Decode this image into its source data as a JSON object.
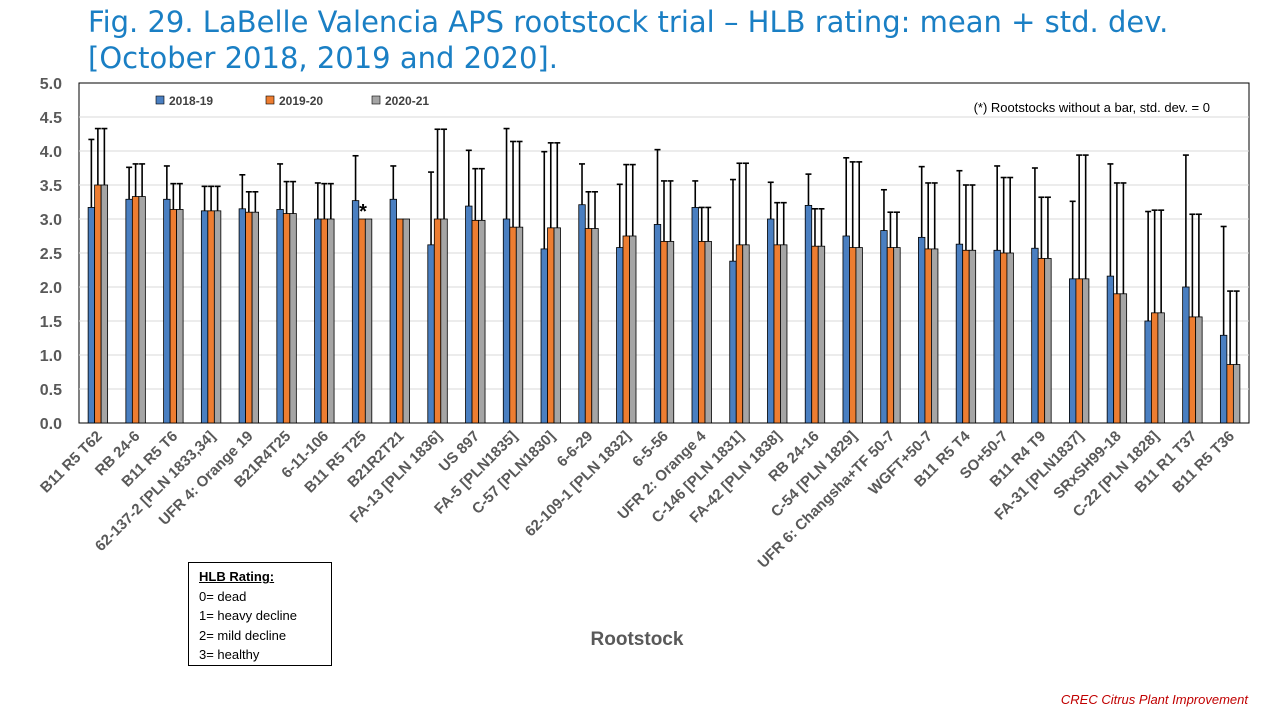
{
  "title": "Fig. 29. LaBelle Valencia APS rootstock trial – HLB rating: mean + std. dev. [October 2018, 2019 and 2020].",
  "chart_data": {
    "type": "bar",
    "title": "Fig. 29. LaBelle Valencia APS rootstock trial – HLB rating: mean + std. dev. [October 2018, 2019 and 2020].",
    "xlabel": "Rootstock",
    "ylabel": "",
    "ylim": [
      0,
      5
    ],
    "yticks": [
      "0.0",
      "0.5",
      "1.0",
      "1.5",
      "2.0",
      "2.5",
      "3.0",
      "3.5",
      "4.0",
      "4.5",
      "5.0"
    ],
    "grid": true,
    "legend_position": "top-left",
    "annotation": "(*) Rootstocks without  a bar, std. dev. = 0",
    "star_label": "*",
    "star_category_index": 7,
    "categories": [
      "B11 R5 T62",
      "RB 24-6",
      "B11 R5 T6",
      "62-137-2 [PLN 1833,34]",
      "UFR 4: Orange 19",
      "B21R4T25",
      "6-11-106",
      "B11 R5 T25",
      "B21R2T21",
      "FA-13 [PLN 1836]",
      "US 897",
      "FA-5 [PLN1835]",
      "C-57 [PLN1830]",
      "6-6-29",
      "62-109-1 [PLN 1832]",
      "6-5-56",
      "UFR 2: Orange 4",
      "C-146 [PLN 1831]",
      "FA-42 [PLN 1838]",
      "RB 24-16",
      "C-54 [PLN 1829]",
      "UFR 6: Changsha+TF 50-7",
      "WGFT+50-7",
      "B11 R5 T4",
      "SO+50-7",
      "B11 R4 T9",
      "FA-31 [PLN1837]",
      "SRxSH99-18",
      "C-22 [PLN 1828]",
      "B11 R1 T37",
      "B11 R5 T36"
    ],
    "series": [
      {
        "name": "2018-19",
        "color": "#4a7fc1",
        "values": [
          3.17,
          3.29,
          3.29,
          3.12,
          3.15,
          3.14,
          3.0,
          3.27,
          3.29,
          2.62,
          3.19,
          3.0,
          2.56,
          3.21,
          2.58,
          2.92,
          3.17,
          2.38,
          3.0,
          3.2,
          2.75,
          2.83,
          2.73,
          2.63,
          2.54,
          2.57,
          2.12,
          2.16,
          1.5,
          2.0,
          1.29
        ],
        "std": [
          1.0,
          0.47,
          0.49,
          0.36,
          0.5,
          0.67,
          0.53,
          0.66,
          0.49,
          1.07,
          0.82,
          1.33,
          1.43,
          0.6,
          0.93,
          1.1,
          0.39,
          1.2,
          0.54,
          0.46,
          1.15,
          0.6,
          1.04,
          1.08,
          1.24,
          1.18,
          1.14,
          1.65,
          1.61,
          1.94,
          1.6
        ]
      },
      {
        "name": "2019-20",
        "color": "#ed7d31",
        "values": [
          3.5,
          3.33,
          3.14,
          3.12,
          3.1,
          3.08,
          3.0,
          3.0,
          3.0,
          3.0,
          2.98,
          2.88,
          2.87,
          2.86,
          2.75,
          2.67,
          2.67,
          2.62,
          2.62,
          2.6,
          2.58,
          2.58,
          2.56,
          2.54,
          2.5,
          2.42,
          2.12,
          1.9,
          1.62,
          1.56,
          0.86
        ],
        "std": [
          0.83,
          0.48,
          0.38,
          0.36,
          0.3,
          0.47,
          0.52,
          0.0,
          0.0,
          1.32,
          0.76,
          1.26,
          1.25,
          0.54,
          1.05,
          0.89,
          0.5,
          1.2,
          0.62,
          0.55,
          1.26,
          0.52,
          0.97,
          0.96,
          1.11,
          0.9,
          1.82,
          1.63,
          1.51,
          1.51,
          1.08
        ]
      },
      {
        "name": "2020-21",
        "color": "#a5a5a5",
        "values": [
          3.5,
          3.33,
          3.14,
          3.12,
          3.1,
          3.08,
          3.0,
          3.0,
          3.0,
          3.0,
          2.98,
          2.88,
          2.87,
          2.86,
          2.75,
          2.67,
          2.67,
          2.62,
          2.62,
          2.6,
          2.58,
          2.58,
          2.56,
          2.54,
          2.5,
          2.42,
          2.12,
          1.9,
          1.62,
          1.56,
          0.86
        ],
        "std": [
          0.83,
          0.48,
          0.38,
          0.36,
          0.3,
          0.47,
          0.52,
          0.0,
          0.0,
          1.32,
          0.76,
          1.26,
          1.25,
          0.54,
          1.05,
          0.89,
          0.5,
          1.2,
          0.62,
          0.55,
          1.26,
          0.52,
          0.97,
          0.96,
          1.11,
          0.9,
          1.82,
          1.63,
          1.51,
          1.51,
          1.08
        ]
      }
    ]
  },
  "hlb_legend": {
    "heading": "HLB Rating:",
    "lines": [
      "0= dead",
      "1= heavy decline",
      "2= mild decline",
      "3= healthy"
    ]
  },
  "credit": "CREC Citrus Plant Improvement"
}
